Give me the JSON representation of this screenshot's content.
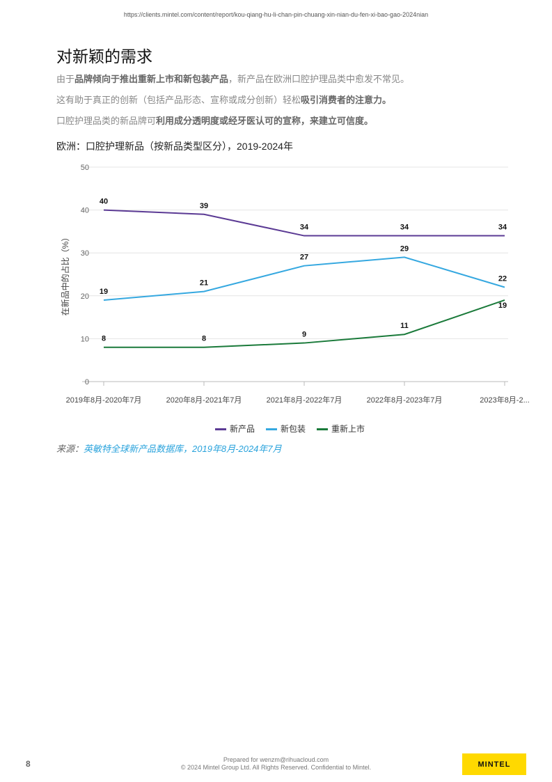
{
  "url": "https://clients.mintel.com/content/report/kou-qiang-hu-li-chan-pin-chuang-xin-nian-du-fen-xi-bao-gao-2024nian",
  "title": "对新颖的需求",
  "paragraphs": [
    [
      {
        "t": "由于",
        "b": false
      },
      {
        "t": "品牌倾向于推出重新上市和新包装产品",
        "b": true
      },
      {
        "t": "，新产品在欧洲口腔护理品类中愈发不常见。",
        "b": false
      }
    ],
    [
      {
        "t": "这有助于真正的创新（包括产品形态、宣称或成分创新）轻松",
        "b": false
      },
      {
        "t": "吸引消费者的注意力。",
        "b": true
      }
    ],
    [
      {
        "t": "口腔护理品类的新品牌可",
        "b": false
      },
      {
        "t": "利用成分透明度或经牙医认可的宣称，来建立可信度。",
        "b": true
      }
    ]
  ],
  "chart_data": {
    "type": "line",
    "title": "欧洲：口腔护理新品（按新品类型区分），2019-2024年",
    "ylabel": "在新品中的占比（%）",
    "xlabel": "",
    "ylim": [
      0,
      50
    ],
    "yticks": [
      0,
      10,
      20,
      30,
      40,
      50
    ],
    "categories": [
      "2019年8月-2020年7月",
      "2020年8月-2021年7月",
      "2021年8月-2022年7月",
      "2022年8月-2023年7月",
      "2023年8月-2..."
    ],
    "grid": true,
    "legend_position": "bottom",
    "series": [
      {
        "name": "新产品",
        "color": "#5b3a94",
        "values": [
          40,
          39,
          34,
          34,
          34
        ]
      },
      {
        "name": "新包装",
        "color": "#35a8e0",
        "values": [
          19,
          21,
          27,
          29,
          22
        ]
      },
      {
        "name": "重新上市",
        "color": "#1a7a3a",
        "values": [
          8,
          8,
          9,
          11,
          19
        ]
      }
    ]
  },
  "source": {
    "label": "来源：",
    "value": "英敏特全球新产品数据库，2019年8月-2024年7月"
  },
  "footer": {
    "page": "8",
    "prepared": "Prepared for wenzm@rihuacloud.com",
    "copyright": "© 2024 Mintel Group Ltd. All Rights Reserved. Confidential to Mintel.",
    "logo": "MINTEL"
  }
}
